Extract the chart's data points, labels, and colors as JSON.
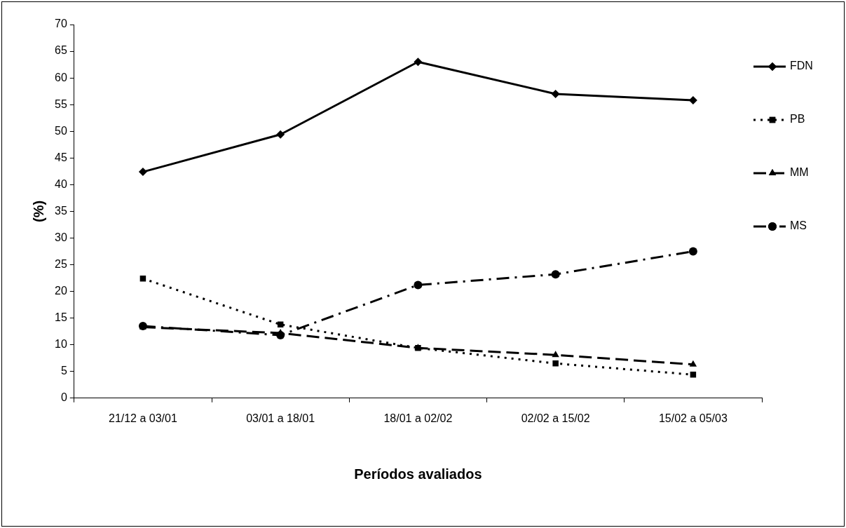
{
  "chart_data": {
    "type": "line",
    "xlabel": "Períodos avaliados",
    "ylabel": "(%)",
    "categories": [
      "21/12 a 03/01",
      "03/01 a 18/01",
      "18/01 a 02/02",
      "02/02 a 15/02",
      "15/02 a 05/03"
    ],
    "series": [
      {
        "name": "FDN",
        "color": "#000000",
        "marker": "diamond",
        "line_style": "solid",
        "values": [
          42.4,
          49.4,
          63,
          57,
          55.8
        ]
      },
      {
        "name": "PB",
        "color": "#000000",
        "marker": "square",
        "line_style": "dotted",
        "values": [
          22.4,
          13.8,
          9.4,
          6.5,
          4.4
        ]
      },
      {
        "name": "MM",
        "color": "#000000",
        "marker": "triangle",
        "line_style": "dashed",
        "values": [
          13.3,
          12.2,
          9.4,
          8.1,
          6.3
        ]
      },
      {
        "name": "MS",
        "color": "#000000",
        "marker": "circle",
        "line_style": "dashdot",
        "values": [
          13.5,
          11.8,
          21.2,
          23.2,
          27.5
        ]
      }
    ],
    "ylim": [
      0,
      70
    ],
    "yticks": [
      0,
      5,
      10,
      15,
      20,
      25,
      30,
      35,
      40,
      45,
      50,
      55,
      60,
      65,
      70
    ],
    "grid": false,
    "legend": "right"
  }
}
